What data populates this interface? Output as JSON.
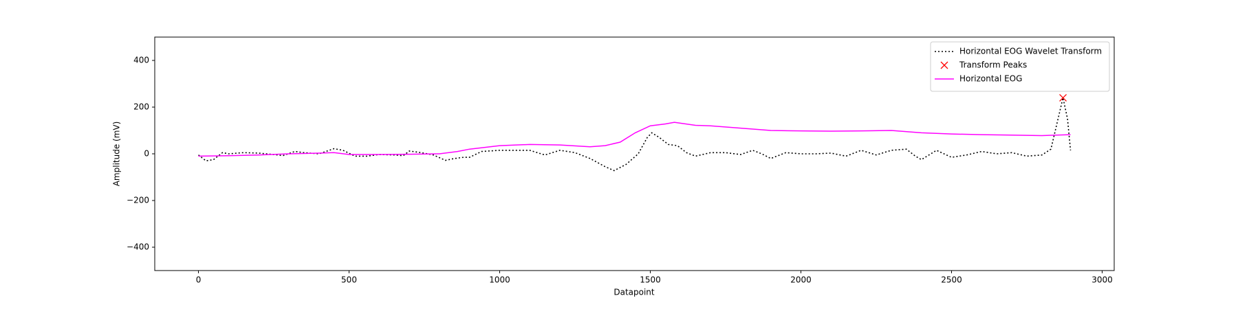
{
  "chart_data": {
    "type": "line",
    "xlabel": "Datapoint",
    "ylabel": "Amplitude (mV)",
    "xlim": [
      -145,
      3040
    ],
    "ylim": [
      -500,
      500
    ],
    "xticks": [
      0,
      500,
      1000,
      1500,
      2000,
      2500,
      3000
    ],
    "yticks": [
      {
        "value": -400,
        "label": "−400"
      },
      {
        "value": -200,
        "label": "−200"
      },
      0,
      200,
      400
    ],
    "legend": "upper right",
    "series": [
      {
        "name": "Horizontal EOG Wavelet Transform",
        "kind": "line",
        "dash": "dotted",
        "color": "#000000",
        "x": [
          0,
          25,
          50,
          80,
          100,
          150,
          200,
          250,
          280,
          320,
          350,
          400,
          450,
          480,
          520,
          560,
          600,
          650,
          680,
          700,
          740,
          780,
          820,
          850,
          880,
          900,
          940,
          1000,
          1050,
          1100,
          1150,
          1200,
          1250,
          1300,
          1350,
          1380,
          1420,
          1460,
          1490,
          1505,
          1530,
          1560,
          1590,
          1620,
          1650,
          1700,
          1750,
          1800,
          1840,
          1870,
          1900,
          1950,
          2000,
          2050,
          2100,
          2150,
          2200,
          2250,
          2300,
          2350,
          2380,
          2400,
          2450,
          2500,
          2550,
          2600,
          2650,
          2700,
          2750,
          2800,
          2830,
          2850,
          2870,
          2885,
          2895
        ],
        "values": [
          -5,
          -30,
          -25,
          5,
          0,
          5,
          3,
          -3,
          -8,
          10,
          5,
          0,
          22,
          15,
          -10,
          -10,
          -3,
          -5,
          -8,
          12,
          5,
          -5,
          -28,
          -20,
          -15,
          -15,
          10,
          15,
          15,
          15,
          -5,
          15,
          5,
          -20,
          -55,
          -72,
          -45,
          0,
          70,
          90,
          70,
          40,
          35,
          5,
          -10,
          5,
          5,
          -3,
          15,
          0,
          -20,
          5,
          0,
          0,
          3,
          -10,
          15,
          -5,
          15,
          20,
          -10,
          -25,
          15,
          -15,
          -5,
          10,
          0,
          5,
          -10,
          -5,
          20,
          130,
          240,
          150,
          15
        ]
      },
      {
        "name": "Transform Peaks",
        "kind": "scatter",
        "marker": "x",
        "color": "#ff0000",
        "x": [
          2870
        ],
        "values": [
          240
        ]
      },
      {
        "name": "Horizontal EOG",
        "kind": "line",
        "dash": "solid",
        "color": "#ff00ff",
        "x": [
          0,
          100,
          200,
          300,
          400,
          450,
          500,
          600,
          700,
          800,
          860,
          900,
          1000,
          1100,
          1200,
          1300,
          1350,
          1400,
          1450,
          1500,
          1550,
          1580,
          1650,
          1700,
          1800,
          1900,
          2000,
          2100,
          2200,
          2300,
          2400,
          2500,
          2600,
          2700,
          2800,
          2895
        ],
        "values": [
          -10,
          -8,
          -5,
          0,
          3,
          5,
          -3,
          -3,
          -2,
          0,
          10,
          20,
          35,
          40,
          38,
          30,
          35,
          50,
          90,
          120,
          128,
          135,
          122,
          120,
          110,
          100,
          98,
          97,
          98,
          100,
          90,
          85,
          82,
          80,
          78,
          82
        ]
      }
    ]
  }
}
